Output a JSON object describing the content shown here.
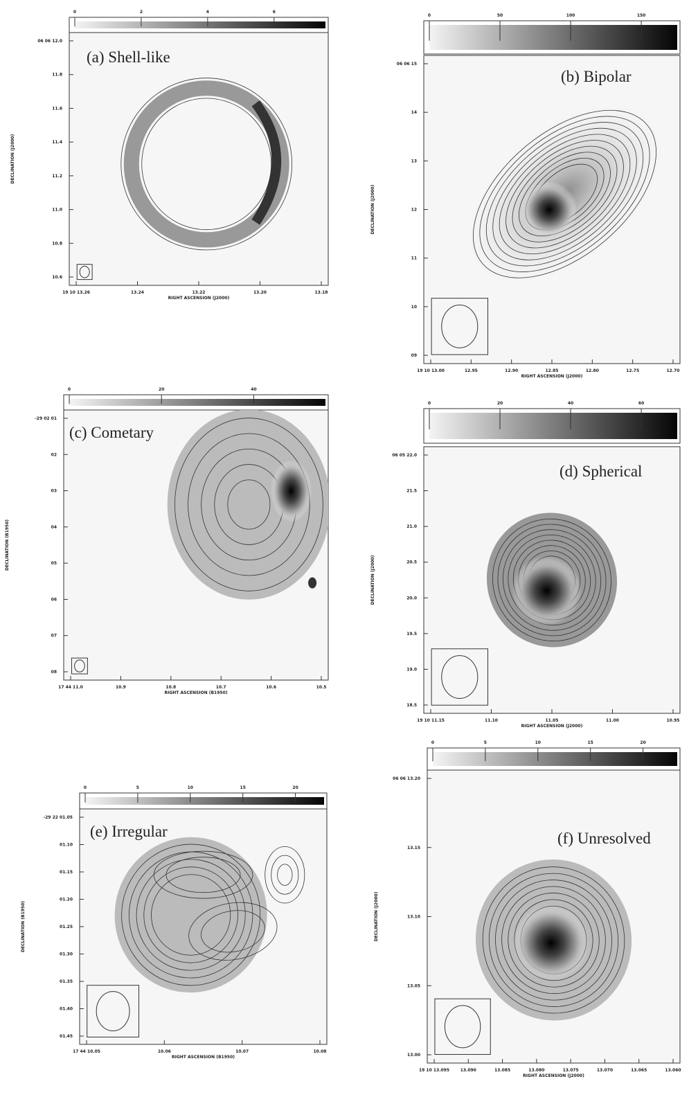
{
  "panels": [
    {
      "label": "(a) Shell-like",
      "colorbar": [
        "0",
        "2",
        "4",
        "6"
      ],
      "yticks": [
        "06 06 12.0",
        "11.8",
        "11.6",
        "11.4",
        "11.2",
        "11.0",
        "10.8",
        "10.6"
      ],
      "xticks": [
        "19 10 13.26",
        "13.24",
        "13.22",
        "13.20",
        "13.18"
      ],
      "xlabel": "RIGHT ASCENSION (J2000)",
      "ylabel": "DECLINATION (J2000)"
    },
    {
      "label": "(b) Bipolar",
      "colorbar": [
        "0",
        "50",
        "100",
        "150"
      ],
      "yticks": [
        "06 06 15",
        "14",
        "13",
        "12",
        "11",
        "10",
        "09"
      ],
      "xticks": [
        "19 10 13.00",
        "12.95",
        "12.90",
        "12.85",
        "12.80",
        "12.75",
        "12.70"
      ],
      "xlabel": "RIGHT ASCENSION (J2000)",
      "ylabel": "DECLINATION (J2000)"
    },
    {
      "label": "(c) Cometary",
      "colorbar": [
        "0",
        "20",
        "40"
      ],
      "yticks": [
        "-29 02 01",
        "02",
        "03",
        "04",
        "05",
        "06",
        "07",
        "08"
      ],
      "xticks": [
        "17 44 11.0",
        "10.9",
        "10.8",
        "10.7",
        "10.6",
        "10.5"
      ],
      "xlabel": "RIGHT ASCENSION (B1950)",
      "ylabel": "DECLINATION (B1950)"
    },
    {
      "label": "(d) Spherical",
      "colorbar": [
        "0",
        "20",
        "40",
        "60"
      ],
      "yticks": [
        "06 05 22.0",
        "21.5",
        "21.0",
        "20.5",
        "20.0",
        "19.5",
        "19.0",
        "18.5"
      ],
      "xticks": [
        "19 10 11.15",
        "11.10",
        "11.05",
        "11.00",
        "10.95"
      ],
      "xlabel": "RIGHT ASCENSION (J2000)",
      "ylabel": "DECLINATION (J2000)"
    },
    {
      "label": "(e) Irregular",
      "colorbar": [
        "0",
        "5",
        "10",
        "15",
        "20"
      ],
      "yticks": [
        "-29 22 01.05",
        "01.10",
        "01.15",
        "01.20",
        "01.25",
        "01.30",
        "01.35",
        "01.40",
        "01.45"
      ],
      "xticks": [
        "17 44 10.05",
        "10.06",
        "10.07",
        "10.08"
      ],
      "xlabel": "RIGHT ASCENSION (B1950)",
      "ylabel": "DECLINATION (B1950)"
    },
    {
      "label": "(f) Unresolved",
      "colorbar": [
        "0",
        "5",
        "10",
        "15",
        "20"
      ],
      "yticks": [
        "06 06 13.20",
        "13.15",
        "13.10",
        "13.05",
        "13.00"
      ],
      "xticks": [
        "19 10 13.095",
        "13.090",
        "13.085",
        "13.080",
        "13.075",
        "13.070",
        "13.065",
        "13.060"
      ],
      "xlabel": "RIGHT ASCENSION (J2000)",
      "ylabel": "DECLINATION (J2000)"
    }
  ]
}
